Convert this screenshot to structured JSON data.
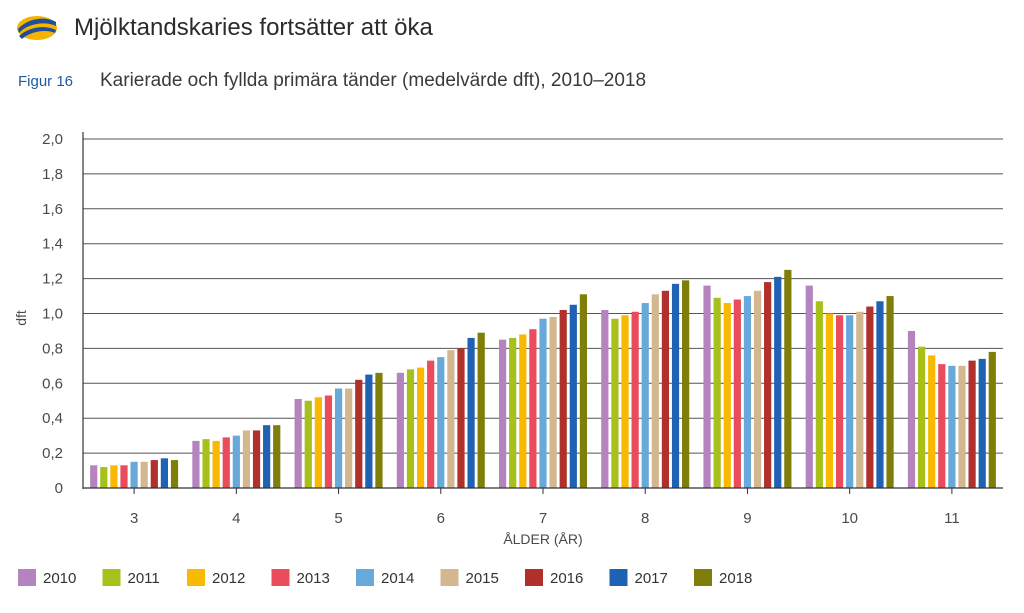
{
  "header": {
    "title": "Mjölktandskaries fortsätter att öka",
    "logo_icon": "stripe-oval-logo-icon"
  },
  "figure": {
    "number": "Figur 16",
    "caption": "Karierade och fyllda primära tänder (medelvärde dft), 2010–2018"
  },
  "chart_data": {
    "type": "bar",
    "title": "",
    "xlabel": "ÅLDER (ÅR)",
    "ylabel": "dft",
    "ylim": [
      0,
      2.0
    ],
    "yticks": [
      "0",
      "0,2",
      "0,4",
      "0,6",
      "0,8",
      "1,0",
      "1,2",
      "1,4",
      "1,6",
      "1,8",
      "2,0"
    ],
    "ytick_values": [
      0,
      0.2,
      0.4,
      0.6,
      0.8,
      1.0,
      1.2,
      1.4,
      1.6,
      1.8,
      2.0
    ],
    "grid": true,
    "legend_position": "bottom",
    "categories": [
      "3",
      "4",
      "5",
      "6",
      "7",
      "8",
      "9",
      "10",
      "11"
    ],
    "series": [
      {
        "name": "2010",
        "color": "#b584be",
        "values": [
          0.13,
          0.27,
          0.51,
          0.66,
          0.85,
          1.02,
          1.16,
          1.16,
          0.9
        ]
      },
      {
        "name": "2011",
        "color": "#a8c01a",
        "values": [
          0.12,
          0.28,
          0.5,
          0.68,
          0.86,
          0.97,
          1.09,
          1.07,
          0.81
        ]
      },
      {
        "name": "2012",
        "color": "#f8b900",
        "values": [
          0.13,
          0.27,
          0.52,
          0.69,
          0.88,
          0.99,
          1.06,
          1.0,
          0.76
        ]
      },
      {
        "name": "2013",
        "color": "#ea4c5b",
        "values": [
          0.13,
          0.29,
          0.53,
          0.73,
          0.91,
          1.01,
          1.08,
          0.99,
          0.71
        ]
      },
      {
        "name": "2014",
        "color": "#69a9da",
        "values": [
          0.15,
          0.3,
          0.57,
          0.75,
          0.97,
          1.06,
          1.1,
          0.99,
          0.7
        ]
      },
      {
        "name": "2015",
        "color": "#d2b791",
        "values": [
          0.15,
          0.33,
          0.57,
          0.79,
          0.98,
          1.11,
          1.13,
          1.01,
          0.7
        ]
      },
      {
        "name": "2016",
        "color": "#b0302b",
        "values": [
          0.16,
          0.33,
          0.62,
          0.8,
          1.02,
          1.13,
          1.18,
          1.04,
          0.73
        ]
      },
      {
        "name": "2017",
        "color": "#1f62b3",
        "values": [
          0.17,
          0.36,
          0.65,
          0.86,
          1.05,
          1.17,
          1.21,
          1.07,
          0.74
        ]
      },
      {
        "name": "2018",
        "color": "#7e7e08",
        "values": [
          0.16,
          0.36,
          0.66,
          0.89,
          1.11,
          1.19,
          1.25,
          1.1,
          0.78
        ]
      }
    ]
  }
}
